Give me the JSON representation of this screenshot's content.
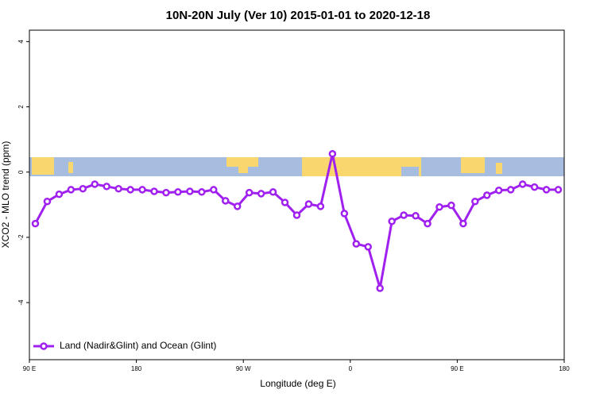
{
  "chart_data": {
    "type": "line",
    "title": "10N-20N July (Ver 10)   2015-01-01 to 2020-12-18",
    "x_label": "Longitude (deg E)",
    "y_label": "XCO2 - MLO trend (ppm)",
    "x": [
      95,
      105,
      115,
      125,
      135,
      145,
      155,
      165,
      175,
      185,
      195,
      205,
      215,
      225,
      235,
      245,
      255,
      265,
      275,
      285,
      295,
      305,
      315,
      325,
      335,
      345,
      355,
      365,
      375,
      385,
      395,
      405,
      415,
      425,
      435,
      445,
      455,
      465,
      475,
      485,
      495,
      505,
      515,
      525,
      535
    ],
    "series": [
      {
        "name": "Land (Nadir&Glint) and Ocean (Glint)",
        "color": "#a020f0",
        "values": [
          -1.58,
          -0.9,
          -0.68,
          -0.54,
          -0.51,
          -0.37,
          -0.44,
          -0.51,
          -0.54,
          -0.54,
          -0.59,
          -0.63,
          -0.61,
          -0.59,
          -0.61,
          -0.54,
          -0.88,
          -1.05,
          -0.63,
          -0.66,
          -0.61,
          -0.93,
          -1.32,
          -0.98,
          -1.05,
          0.56,
          -1.27,
          -2.2,
          -2.29,
          -3.56,
          -1.51,
          -1.32,
          -1.34,
          -1.58,
          -1.07,
          -1.02,
          -1.58,
          -0.9,
          -0.71,
          -0.56,
          -0.54,
          -0.37,
          -0.46,
          -0.54,
          -0.54
        ]
      }
    ],
    "xlim": [
      90,
      540
    ],
    "ylim": [
      -5.75,
      4.35
    ],
    "xticks": [
      {
        "value": 90,
        "label": "90 E"
      },
      180,
      {
        "value": 270,
        "label": "90 W"
      },
      {
        "value": 360,
        "label": "0"
      },
      {
        "value": 450,
        "label": "90 E"
      },
      {
        "value": 540,
        "label": "180"
      }
    ],
    "yticks": [
      -4,
      -2,
      0,
      2,
      4
    ],
    "legend": "bottom-left"
  }
}
